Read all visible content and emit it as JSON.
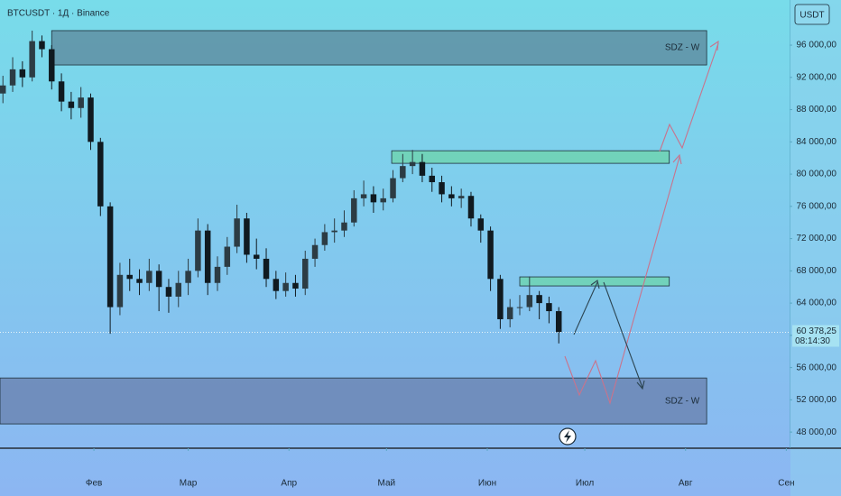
{
  "chart_data": {
    "type": "candlestick",
    "title": "BTCUSDT · 1Д · Binance",
    "currency": "USDT",
    "x": [
      4,
      7,
      10,
      13,
      16,
      19,
      22,
      25,
      28,
      31,
      34,
      37,
      40,
      43,
      46,
      49,
      52,
      55,
      58,
      61,
      64,
      67,
      70,
      73,
      76,
      79,
      82,
      85,
      88,
      91,
      94,
      97,
      100,
      103,
      106,
      109,
      112,
      115,
      118,
      121,
      124,
      127,
      130,
      133,
      136,
      139,
      142,
      145,
      148,
      151,
      154,
      157,
      160,
      163,
      166,
      169,
      172,
      175
    ],
    "open": [
      90000,
      91000,
      93000,
      92000,
      96500,
      95500,
      91500,
      89000,
      88200,
      89500,
      84000,
      76000,
      63500,
      67500,
      67000,
      66500,
      68000,
      66000,
      64800,
      66500,
      68000,
      73000,
      66500,
      68500,
      71000,
      74500,
      70000,
      69500,
      67000,
      65500,
      66500,
      65800,
      69500,
      71200,
      72800,
      73000,
      74000,
      77000,
      77500,
      76500,
      77000,
      79500,
      81000,
      81500,
      79800,
      79000,
      77500,
      77000,
      77300,
      74500,
      73000,
      67000,
      62000,
      63500,
      63500,
      65000,
      64000,
      63000
    ],
    "high": [
      92200,
      94500,
      94000,
      97800,
      97200,
      96000,
      92500,
      90200,
      90800,
      90000,
      84500,
      76500,
      69000,
      69500,
      68200,
      69500,
      68800,
      67000,
      68000,
      69500,
      74500,
      73800,
      69800,
      72200,
      76200,
      75200,
      72000,
      70800,
      68000,
      67800,
      67500,
      70500,
      72000,
      73800,
      74500,
      75500,
      78000,
      79200,
      78500,
      78200,
      80500,
      82500,
      83000,
      82500,
      80800,
      79800,
      78500,
      78200,
      77800,
      75000,
      73500,
      67500,
      64500,
      65000,
      67300,
      65500,
      64800,
      63500
    ],
    "low": [
      88800,
      90200,
      90800,
      91500,
      94500,
      90500,
      87800,
      86800,
      87000,
      83000,
      74800,
      60200,
      62500,
      65500,
      65000,
      65500,
      63000,
      62800,
      63500,
      65000,
      67200,
      65000,
      65500,
      67500,
      70200,
      69000,
      68200,
      66000,
      64500,
      64800,
      64800,
      65000,
      68500,
      70500,
      71500,
      72200,
      73500,
      76000,
      75200,
      75500,
      76500,
      79000,
      80000,
      79000,
      77800,
      76500,
      76000,
      75800,
      73500,
      71500,
      65500,
      60800,
      61000,
      62500,
      63000,
      62000,
      61500,
      59000
    ],
    "close": [
      91000,
      93000,
      92000,
      96500,
      95500,
      91500,
      89000,
      88200,
      89500,
      84000,
      76000,
      63500,
      67500,
      67000,
      66500,
      68000,
      66000,
      64800,
      66500,
      68000,
      73000,
      66500,
      68500,
      71000,
      74500,
      70000,
      69500,
      67000,
      65500,
      66500,
      65800,
      69500,
      71200,
      72800,
      73000,
      74000,
      77000,
      77500,
      76500,
      77000,
      79500,
      81000,
      81500,
      79800,
      79000,
      77500,
      77000,
      77300,
      74500,
      73000,
      67000,
      62000,
      63500,
      63500,
      65000,
      64000,
      63000,
      60400
    ],
    "up_color": "#2c3c44",
    "down_color": "#101a20",
    "xlim": [
      3.1,
      246
    ],
    "ylim": [
      46000,
      101600
    ],
    "xticks": [
      {
        "value": 32,
        "label": "Фев"
      },
      {
        "value": 61,
        "label": "Мар"
      },
      {
        "value": 92,
        "label": "Апр"
      },
      {
        "value": 122,
        "label": "Май"
      },
      {
        "value": 153,
        "label": "Июн"
      },
      {
        "value": 183,
        "label": "Июл"
      },
      {
        "value": 214,
        "label": "Авг"
      },
      {
        "value": 245,
        "label": "Сен"
      }
    ],
    "yticks": [
      {
        "value": 48000,
        "label": "48 000,00"
      },
      {
        "value": 52000,
        "label": "52 000,00"
      },
      {
        "value": 56000,
        "label": "56 000,00"
      },
      {
        "value": 60000,
        "label": "60 000,00"
      },
      {
        "value": 64000,
        "label": "64 000,00"
      },
      {
        "value": 68000,
        "label": "68 000,00"
      },
      {
        "value": 72000,
        "label": "72 000,00"
      },
      {
        "value": 76000,
        "label": "76 000,00"
      },
      {
        "value": 80000,
        "label": "80 000,00"
      },
      {
        "value": 84000,
        "label": "84 000,00"
      },
      {
        "value": 88000,
        "label": "88 000,00"
      },
      {
        "value": 92000,
        "label": "92 000,00"
      },
      {
        "value": 96000,
        "label": "96 000,00"
      }
    ],
    "last_price": {
      "value": 60378.25,
      "label": "60 378,25"
    },
    "countdown": "08:14:30",
    "zones": [
      {
        "label": "SDZ - W",
        "x": [
          19,
          220.5
        ],
        "y": [
          93540,
          97800
        ],
        "color": "#5f8fa3"
      },
      {
        "x": [
          123.6,
          209
        ],
        "y": [
          81340,
          82900
        ],
        "color": "#6fd4b2"
      },
      {
        "x": [
          163,
          209
        ],
        "y": [
          66130,
          67250
        ],
        "color": "#6fd4b2"
      },
      {
        "label": "SDZ - W",
        "x": [
          3.1,
          220.5
        ],
        "y": [
          49010,
          54710
        ],
        "color": "#6c86b4"
      }
    ]
  }
}
